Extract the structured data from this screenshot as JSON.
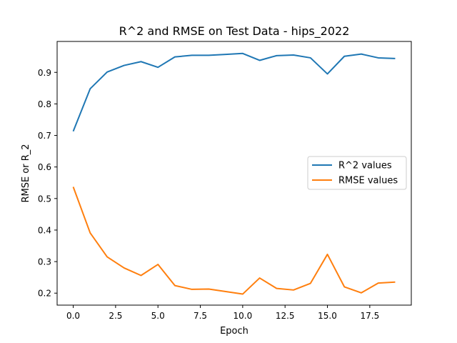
{
  "chart_data": {
    "type": "line",
    "title": "R^2 and RMSE on Test Data - hips_2022",
    "xlabel": "Epoch",
    "ylabel": "RMSE or R_2",
    "xlim": [
      -0.95,
      19.95
    ],
    "ylim": [
      0.162,
      0.998
    ],
    "x_ticks": [
      0.0,
      2.5,
      5.0,
      7.5,
      10.0,
      12.5,
      15.0,
      17.5
    ],
    "x_tick_labels": [
      "0.0",
      "2.5",
      "5.0",
      "7.5",
      "10.0",
      "12.5",
      "15.0",
      "17.5"
    ],
    "y_ticks": [
      0.2,
      0.3,
      0.4,
      0.5,
      0.6,
      0.7,
      0.8,
      0.9
    ],
    "y_tick_labels": [
      "0.2",
      "0.3",
      "0.4",
      "0.5",
      "0.6",
      "0.7",
      "0.8",
      "0.9"
    ],
    "grid": false,
    "legend_position": "center-right",
    "x": [
      0,
      1,
      2,
      3,
      4,
      5,
      6,
      7,
      8,
      9,
      10,
      11,
      12,
      13,
      14,
      15,
      16,
      17,
      18,
      19
    ],
    "series": [
      {
        "name": "R^2 values",
        "color": "#1f77b4",
        "values": [
          0.713,
          0.848,
          0.901,
          0.922,
          0.934,
          0.916,
          0.949,
          0.954,
          0.954,
          0.957,
          0.96,
          0.938,
          0.953,
          0.955,
          0.946,
          0.895,
          0.951,
          0.958,
          0.946,
          0.944
        ]
      },
      {
        "name": "RMSE values",
        "color": "#ff7f0e",
        "values": [
          0.537,
          0.391,
          0.315,
          0.28,
          0.256,
          0.291,
          0.224,
          0.212,
          0.213,
          0.205,
          0.197,
          0.248,
          0.215,
          0.21,
          0.231,
          0.323,
          0.22,
          0.201,
          0.232,
          0.235
        ]
      }
    ]
  }
}
